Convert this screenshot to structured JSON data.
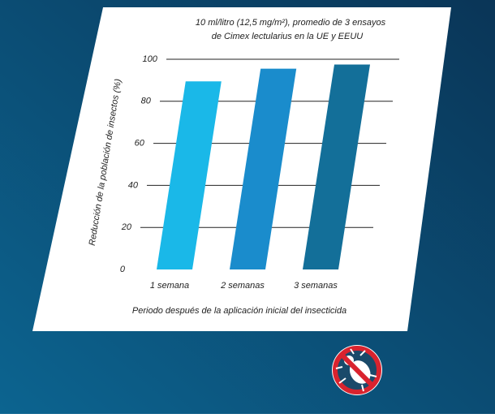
{
  "chart_data": {
    "type": "bar",
    "title": [
      "10 ml/litro (12,5 mg/m²), promedio de 3 ensayos",
      "de Cimex lectularius en la UE y EEUU"
    ],
    "y_label": "Reducción de la población de insectos (%)",
    "x_label": "Periodo después de la aplicación inicial del insecticida",
    "categories": [
      "1 semana",
      "2 semanas",
      "3 semanas"
    ],
    "values": [
      89.5,
      95.5,
      97.5
    ],
    "colors": [
      "#1ab8e8",
      "#1a8ccc",
      "#136f99"
    ],
    "ylim": [
      0,
      100
    ],
    "yticks": [
      0,
      20,
      40,
      60,
      80,
      100
    ],
    "grid": true
  }
}
